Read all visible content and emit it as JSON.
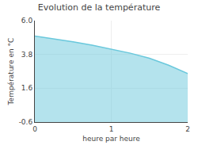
{
  "chart_data": {
    "type": "area",
    "title": "Evolution de la température",
    "x_label": "heure par heure",
    "y_label": "Température en °C",
    "x": [
      0,
      0.25,
      0.5,
      0.75,
      1.0,
      1.25,
      1.5,
      1.75,
      2.0
    ],
    "values": [
      5.0,
      4.82,
      4.62,
      4.4,
      4.15,
      3.88,
      3.55,
      3.1,
      2.55
    ],
    "color": "#6ac8dc",
    "xlim": [
      0,
      2
    ],
    "ylim": [
      -0.6,
      6.0
    ],
    "xticks": [
      0,
      1,
      2
    ],
    "yticks": [
      -0.6,
      1.6,
      3.8,
      {
        "value": 6.0,
        "label": "6.0"
      }
    ],
    "grid": true
  }
}
